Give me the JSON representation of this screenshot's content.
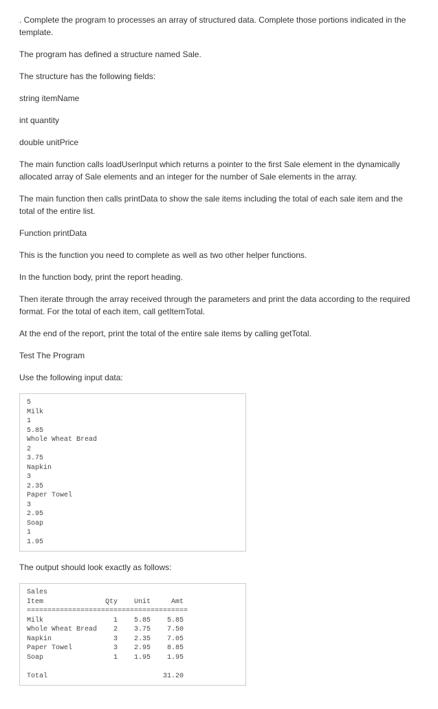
{
  "paragraphs": {
    "p1": ". Complete the program to processes an array of structured data. Complete those portions indicated in the template.",
    "p2": "The program has defined a structure named Sale.",
    "p3": "The structure has the following fields:",
    "p4": "string itemName",
    "p5": "int quantity",
    "p6": "double unitPrice",
    "p7": "The main function calls loadUserInput which returns a pointer to the first Sale element in the dynamically allocated array of Sale elements and an integer for the number of Sale elements in the array.",
    "p8": "The main function then calls printData to show the sale items including the total of each sale item and the total of the entire list.",
    "p9": "Function printData",
    "p10": "This is the function you need to complete as well as two other helper functions.",
    "p11": "In the function body, print the report heading.",
    "p12": "Then iterate through the array received through the parameters and print the data according to the required format. For the total of each item, call getItemTotal.",
    "p13": "At the end of the report, print the total of the entire sale items by calling getTotal.",
    "p14": "Test The Program",
    "p15": "Use the following input data:",
    "p16": "The output should look exactly as follows:"
  },
  "code_input": "5\nMilk\n1\n5.85\nWhole Wheat Bread\n2\n3.75\nNapkin\n3\n2.35\nPaper Towel\n3\n2.95\nSoap\n1\n1.95",
  "code_output": "Sales\nItem               Qty    Unit     Amt\n=======================================\nMilk                 1    5.85    5.85\nWhole Wheat Bread    2    3.75    7.50\nNapkin               3    2.35    7.05\nPaper Towel          3    2.95    8.85\nSoap                 1    1.95    1.95\n\nTotal                            31.20"
}
